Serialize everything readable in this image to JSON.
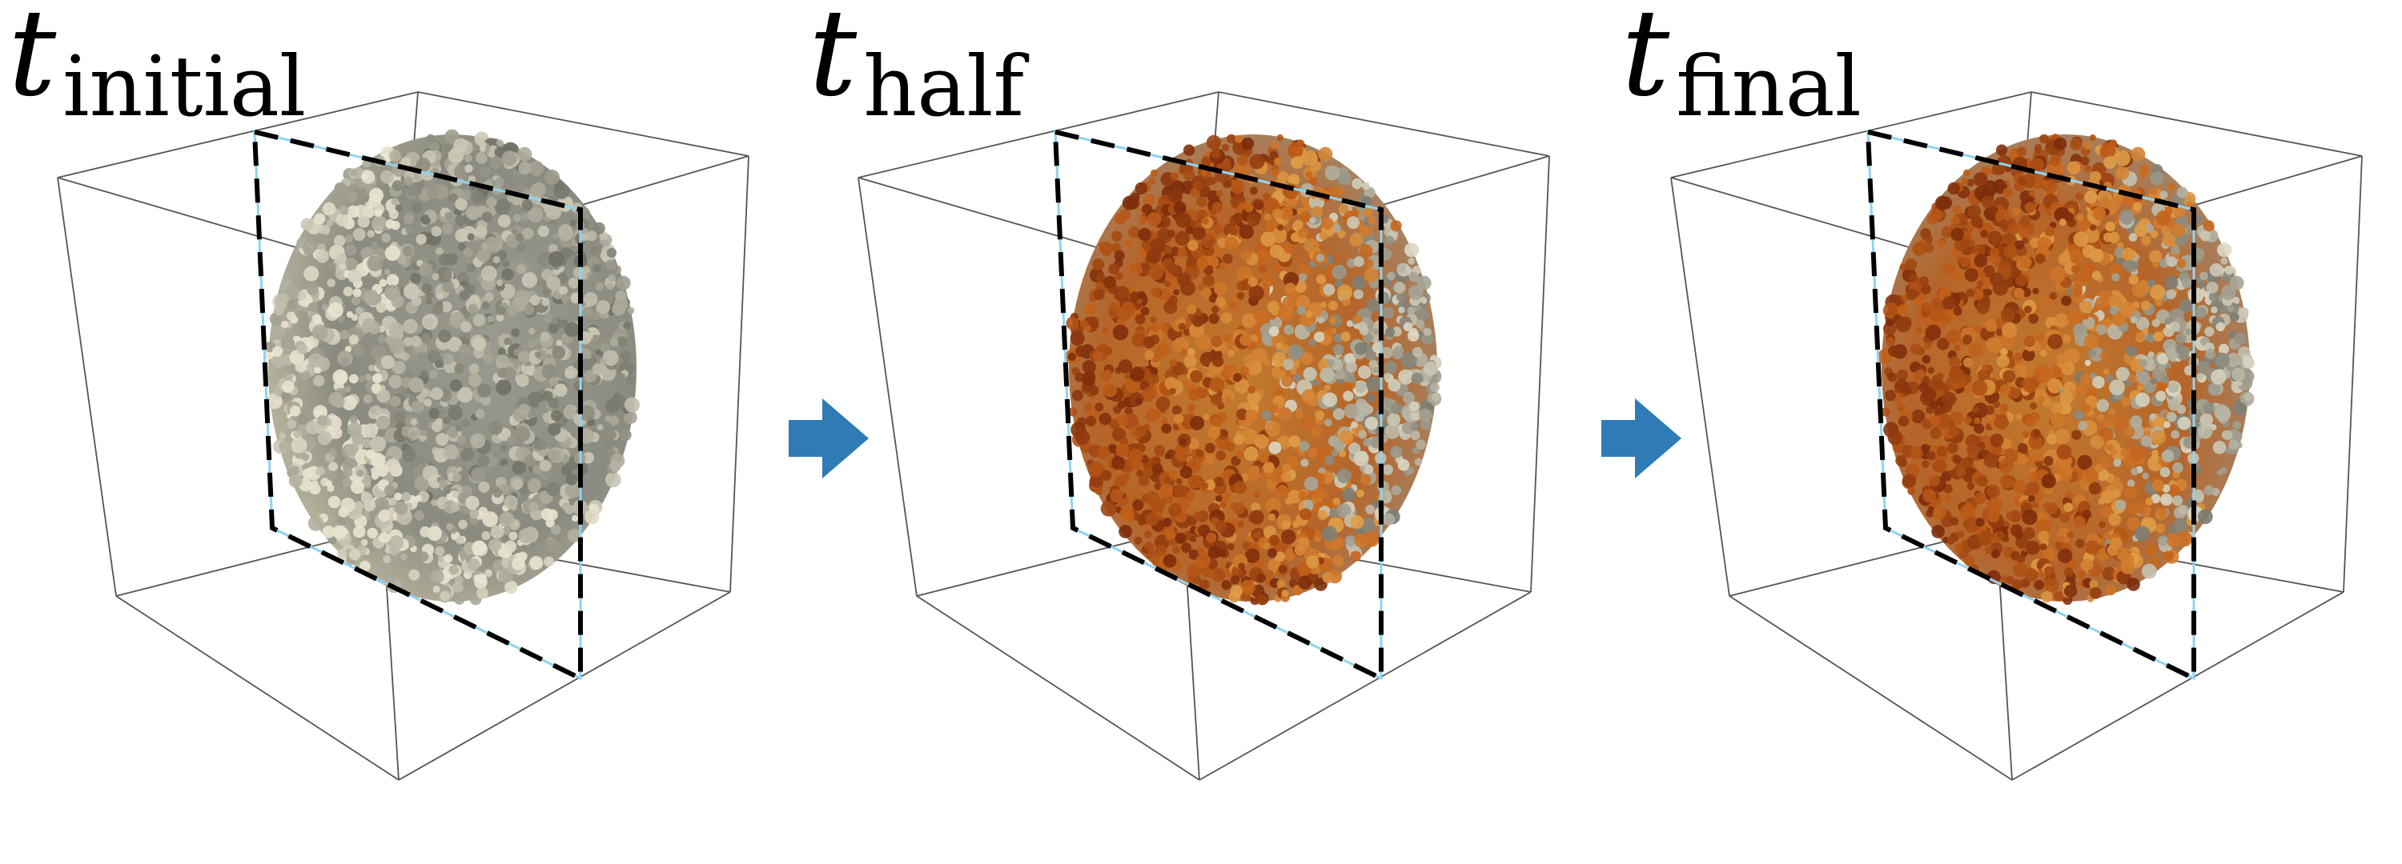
{
  "panels": [
    {
      "t": "t",
      "subscript": "initial",
      "state": "initial"
    },
    {
      "t": "t",
      "subscript": "half",
      "state": "half"
    },
    {
      "t": "t",
      "subscript": "final",
      "state": "final"
    }
  ],
  "arrows": 2,
  "colors": {
    "arrow": "#2e7bb5",
    "particle_initial_light": "#e8e4cf",
    "particle_initial_dark": "#6f6f66",
    "particle_hot_dark": "#7a2a0a",
    "particle_hot_mid": "#c4611a",
    "particle_warm": "#e0a14a",
    "plane_dash": "#000000",
    "plane_blue": "#8fd3ef",
    "box_edge": "#555555"
  }
}
